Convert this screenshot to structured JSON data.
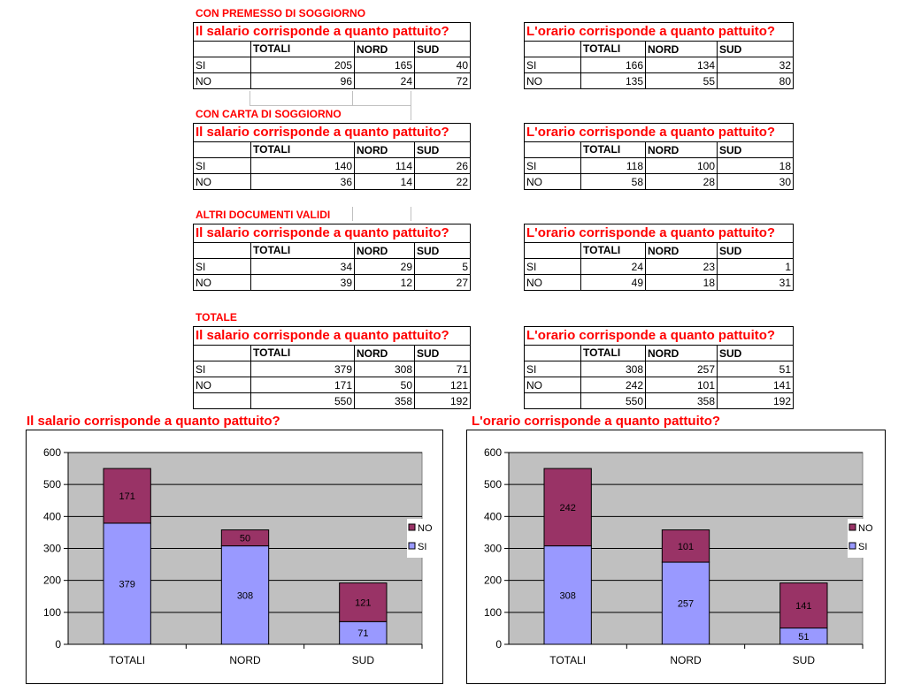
{
  "tables": [
    {
      "section": "CON PREMESSO DI SOGGIORNO",
      "salario": {
        "question": "Il salario corrisponde a quanto pattuito?",
        "headers": [
          "TOTALI",
          "NORD",
          "SUD"
        ],
        "rows": [
          {
            "label": "SI",
            "values": [
              "205",
              "165",
              "40"
            ]
          },
          {
            "label": "NO",
            "values": [
              "96",
              "24",
              "72"
            ]
          }
        ]
      },
      "orario": {
        "question": "L'orario corrisponde a quanto pattuito?",
        "headers": [
          "TOTALI",
          "NORD",
          "SUD"
        ],
        "rows": [
          {
            "label": "SI",
            "values": [
              "166",
              "134",
              "32"
            ]
          },
          {
            "label": "NO",
            "values": [
              "135",
              "55",
              "80"
            ]
          }
        ]
      }
    },
    {
      "section": "CON CARTA DI SOGGIORNO",
      "salario": {
        "question": "Il salario corrisponde a quanto pattuito?",
        "headers": [
          "TOTALI",
          "NORD",
          "SUD"
        ],
        "rows": [
          {
            "label": "SI",
            "values": [
              "140",
              "114",
              "26"
            ]
          },
          {
            "label": "NO",
            "values": [
              "36",
              "14",
              "22"
            ]
          }
        ]
      },
      "orario": {
        "question": "L'orario corrisponde a quanto pattuito?",
        "headers": [
          "TOTALI",
          "NORD",
          "SUD"
        ],
        "rows": [
          {
            "label": "SI",
            "values": [
              "118",
              "100",
              "18"
            ]
          },
          {
            "label": "NO",
            "values": [
              "58",
              "28",
              "30"
            ]
          }
        ]
      }
    },
    {
      "section": "ALTRI DOCUMENTI VALIDI",
      "salario": {
        "question": "Il salario corrisponde a quanto pattuito?",
        "headers": [
          "TOTALI",
          "NORD",
          "SUD"
        ],
        "rows": [
          {
            "label": "SI",
            "values": [
              "34",
              "29",
              "5"
            ]
          },
          {
            "label": "NO",
            "values": [
              "39",
              "12",
              "27"
            ]
          }
        ]
      },
      "orario": {
        "question": "L'orario corrisponde a quanto pattuito?",
        "headers": [
          "TOTALI",
          "NORD",
          "SUD"
        ],
        "rows": [
          {
            "label": "SI",
            "values": [
              "24",
              "23",
              "1"
            ]
          },
          {
            "label": "NO",
            "values": [
              "49",
              "18",
              "31"
            ]
          }
        ]
      }
    },
    {
      "section": "TOTALE",
      "salario": {
        "question": "Il salario corrisponde a quanto pattuito?",
        "headers": [
          "TOTALI",
          "NORD",
          "SUD"
        ],
        "rows": [
          {
            "label": "SI",
            "values": [
              "379",
              "308",
              "71"
            ]
          },
          {
            "label": "NO",
            "values": [
              "171",
              "50",
              "121"
            ]
          },
          {
            "label": "",
            "values": [
              "550",
              "358",
              "192"
            ]
          }
        ]
      },
      "orario": {
        "question": "L'orario corrisponde a quanto pattuito?",
        "headers": [
          "TOTALI",
          "NORD",
          "SUD"
        ],
        "rows": [
          {
            "label": "SI",
            "values": [
              "308",
              "257",
              "51"
            ]
          },
          {
            "label": "NO",
            "values": [
              "242",
              "101",
              "141"
            ]
          },
          {
            "label": "",
            "values": [
              "550",
              "358",
              "192"
            ]
          }
        ]
      }
    }
  ],
  "colors": {
    "title_red": "#ff0000",
    "si_bar": "#9999ff",
    "no_bar": "#993366",
    "plot_area": "#c0c0c0"
  },
  "chart_data": [
    {
      "type": "bar",
      "stacked": true,
      "title": "Il salario corrisponde a quanto pattuito?",
      "categories": [
        "TOTALI",
        "NORD",
        "SUD"
      ],
      "series": [
        {
          "name": "SI",
          "values": [
            379,
            308,
            71
          ],
          "color": "#9999ff"
        },
        {
          "name": "NO",
          "values": [
            171,
            50,
            121
          ],
          "color": "#993366"
        }
      ],
      "ylim": [
        0,
        600
      ],
      "yticks": [
        0,
        100,
        200,
        300,
        400,
        500,
        600
      ],
      "grid": true,
      "legend": "right",
      "legend_order": [
        "NO",
        "SI"
      ]
    },
    {
      "type": "bar",
      "stacked": true,
      "title": "L'orario corrisponde a quanto pattuito?",
      "categories": [
        "TOTALI",
        "NORD",
        "SUD"
      ],
      "series": [
        {
          "name": "SI",
          "values": [
            308,
            257,
            51
          ],
          "color": "#9999ff"
        },
        {
          "name": "NO",
          "values": [
            242,
            101,
            141
          ],
          "color": "#993366"
        }
      ],
      "ylim": [
        0,
        600
      ],
      "yticks": [
        0,
        100,
        200,
        300,
        400,
        500,
        600
      ],
      "grid": true,
      "legend": "right",
      "legend_order": [
        "NO",
        "SI"
      ]
    }
  ]
}
